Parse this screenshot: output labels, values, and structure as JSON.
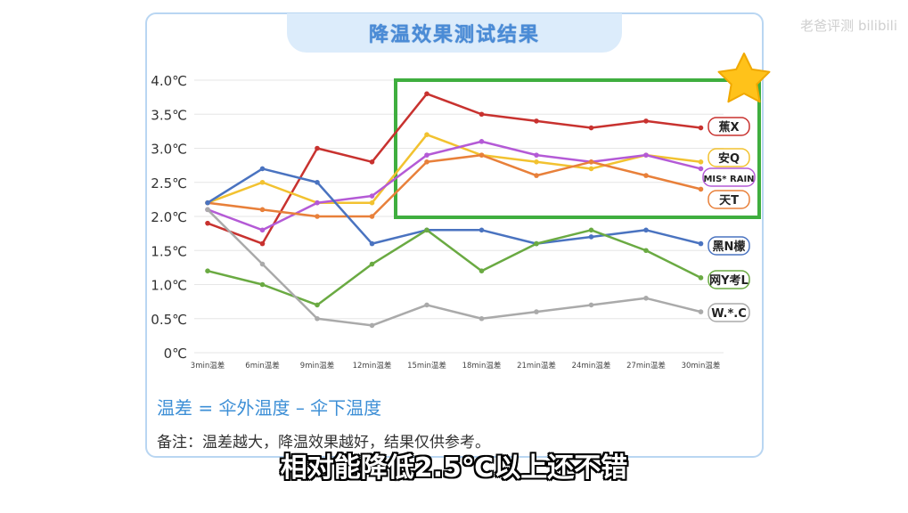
{
  "page": {
    "title": "降温效果测试结果",
    "watermark": "老爸评测 bilibili",
    "formula": "温差 = 伞外温度 – 伞下温度",
    "note": "备注：温差越大，降温效果越好，结果仅供参考。",
    "subtitle": "相对能降低2.5℃以上还不错"
  },
  "chart_data": {
    "type": "line",
    "categories": [
      "3min温差",
      "6min温差",
      "9min温差",
      "12min温差",
      "15min温差",
      "18min温差",
      "21min温差",
      "24min温差",
      "27min温差",
      "30min温差"
    ],
    "ylim": [
      0,
      4.0
    ],
    "yticks": [
      "0℃",
      "0.5℃",
      "1.0℃",
      "1.5℃",
      "2.0℃",
      "2.5℃",
      "3.0℃",
      "3.5℃",
      "4.0℃"
    ],
    "grid": true,
    "series": [
      {
        "name": "蕉X",
        "color": "#c8322f",
        "values": [
          1.9,
          1.6,
          3.0,
          2.8,
          3.8,
          3.5,
          3.4,
          3.3,
          3.4,
          3.3
        ]
      },
      {
        "name": "安Q",
        "color": "#f2c230",
        "values": [
          2.2,
          2.5,
          2.2,
          2.2,
          3.2,
          2.9,
          2.8,
          2.7,
          2.9,
          2.8
        ]
      },
      {
        "name": "MIS* RAIN",
        "color": "#b45ad6",
        "values": [
          2.1,
          1.8,
          2.2,
          2.3,
          2.9,
          3.1,
          2.9,
          2.8,
          2.9,
          2.7
        ]
      },
      {
        "name": "天T",
        "color": "#e8803a",
        "values": [
          2.2,
          2.1,
          2.0,
          2.0,
          2.8,
          2.9,
          2.6,
          2.8,
          2.6,
          2.4
        ]
      },
      {
        "name": "黑N檬",
        "color": "#4a73c0",
        "values": [
          2.2,
          2.7,
          2.5,
          1.6,
          1.8,
          1.8,
          1.6,
          1.7,
          1.8,
          1.6
        ]
      },
      {
        "name": "网Y考L",
        "color": "#6aaa42",
        "values": [
          1.2,
          1.0,
          0.7,
          1.3,
          1.8,
          1.2,
          1.6,
          1.8,
          1.5,
          1.1
        ]
      },
      {
        "name": "W.*.C",
        "color": "#aaaaaa",
        "values": [
          2.1,
          1.3,
          0.5,
          0.4,
          0.7,
          0.5,
          0.6,
          0.7,
          0.8,
          0.6
        ]
      }
    ],
    "highlight_color": "#3fae3f",
    "star_color": "#ffc21a"
  }
}
